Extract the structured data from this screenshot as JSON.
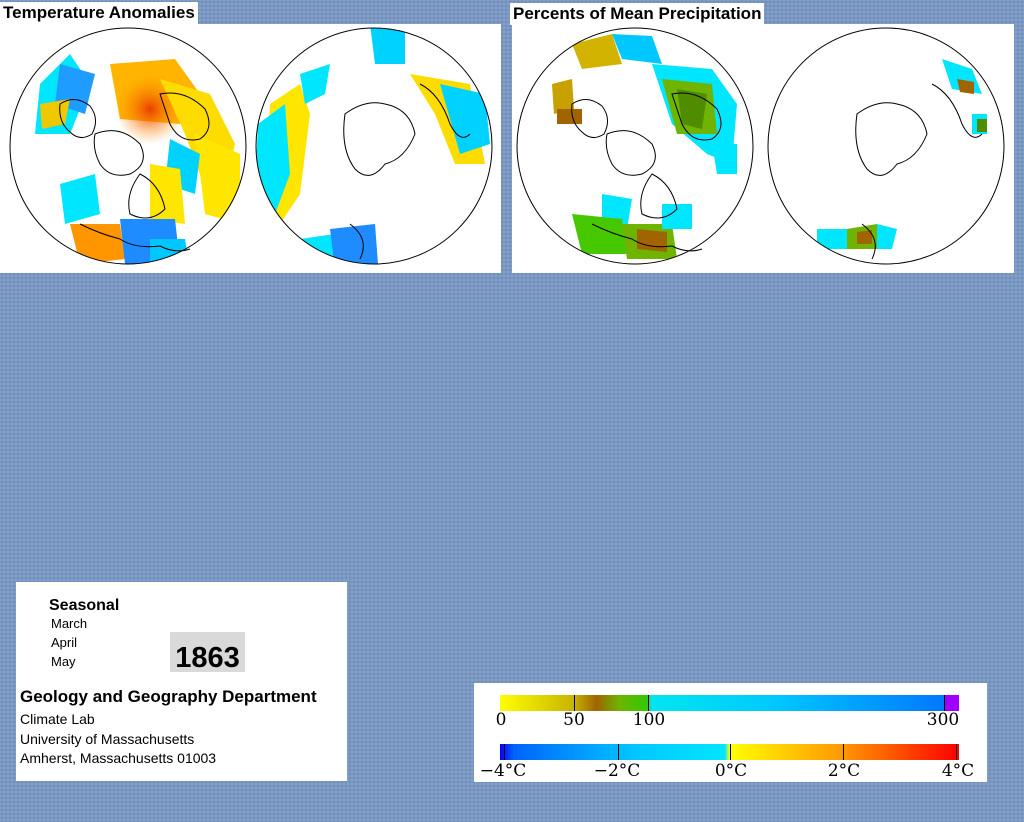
{
  "panels": {
    "temperature": {
      "title": "Temperature Anomalies"
    },
    "precipitation": {
      "title": "Percents of Mean Precipitation"
    }
  },
  "season": {
    "heading": "Seasonal",
    "months": [
      "March",
      "April",
      "May"
    ],
    "year": "1863"
  },
  "credits": {
    "department": "Geology and Geography Department",
    "lab": "Climate Lab",
    "university": "University of Massachusetts",
    "address": "Amherst, Massachusetts 01003"
  },
  "legend": {
    "precipitation": {
      "labels": [
        "0",
        "50",
        "100",
        "300"
      ],
      "colors": [
        "#ffff00",
        "#c8b400",
        "#a06400",
        "#6eb400",
        "#32c800",
        "#00e6f0",
        "#00c8ff",
        "#0078ff",
        "#a000ff"
      ]
    },
    "temperature": {
      "labels": [
        "−4°C",
        "−2°C",
        "0°C",
        "2°C",
        "4°C"
      ],
      "colors": [
        "#0000ff",
        "#0064ff",
        "#00e6ff",
        "#ffff00",
        "#ff9600",
        "#ff0000"
      ]
    }
  },
  "colors": {
    "background": "#7a98c2",
    "cold": "#00c8f0",
    "colder": "#1e8cff",
    "warm": "#ffe600",
    "warmer": "#ff9600",
    "hot": "#ff4b00",
    "dry": "#c8a000",
    "wet": "#46c800"
  }
}
